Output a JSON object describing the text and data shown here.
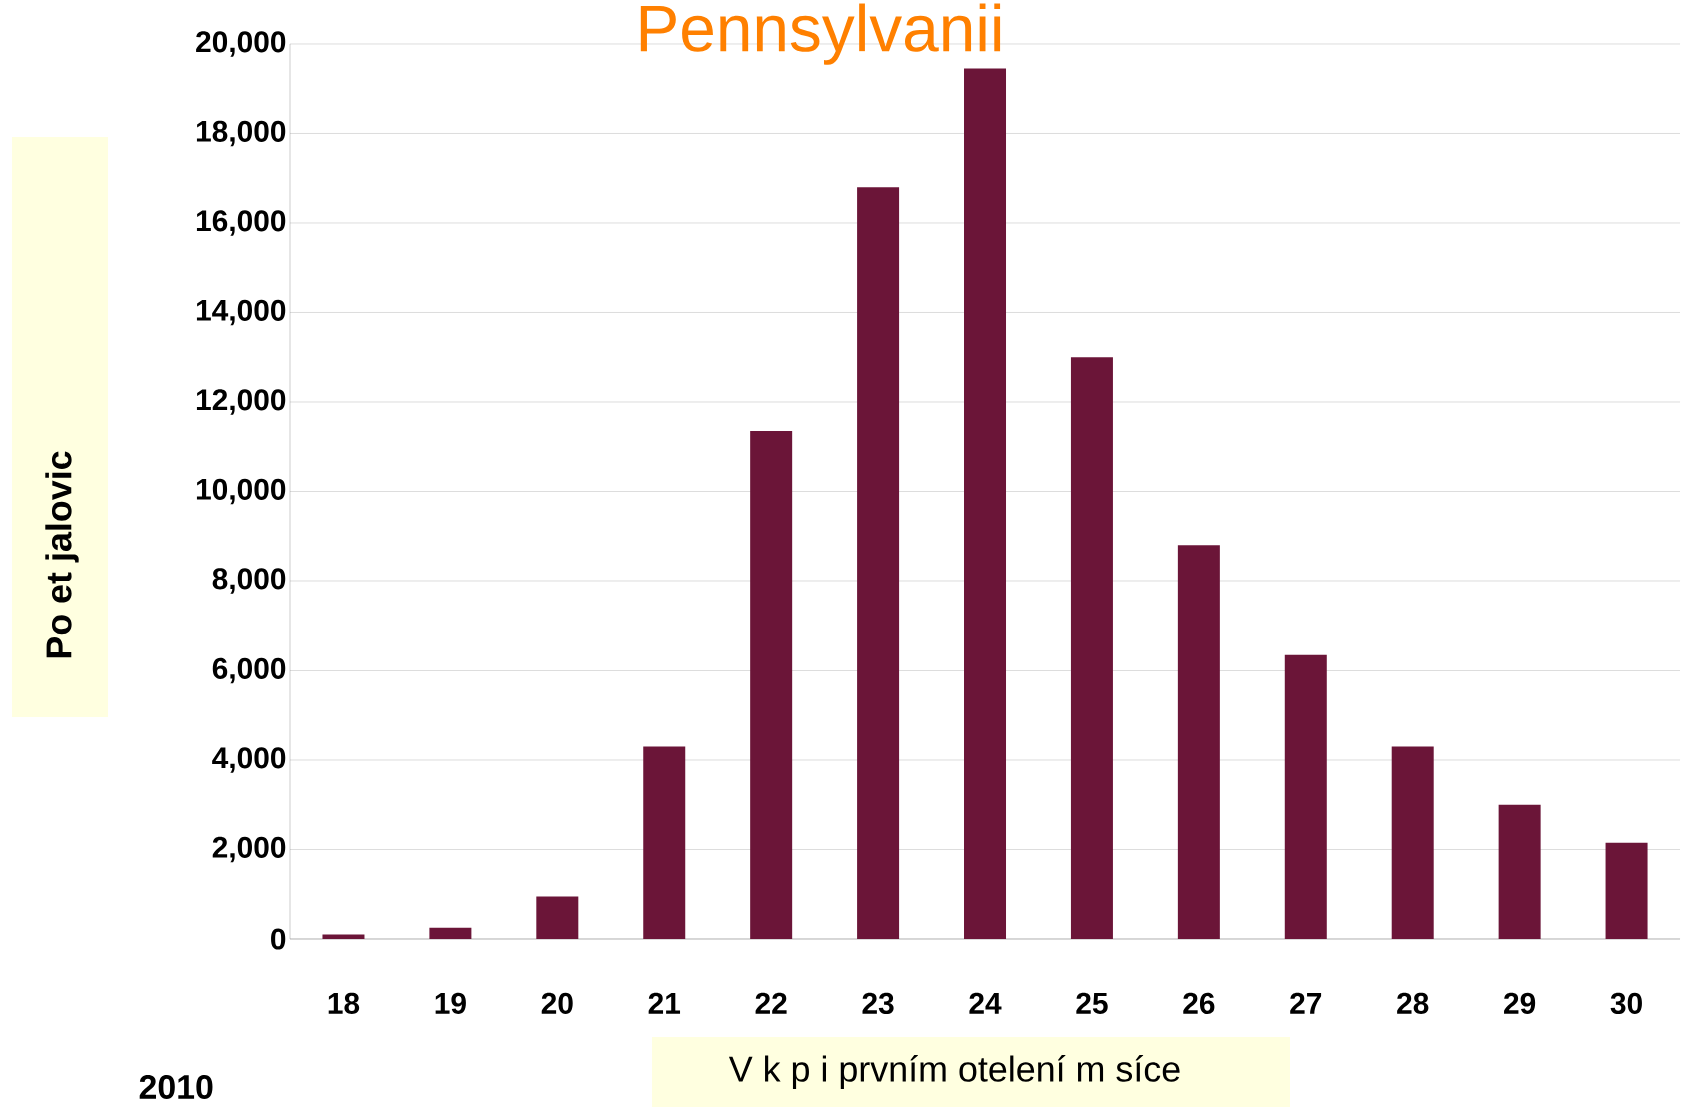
{
  "chart_data": {
    "type": "bar",
    "title": "Pennsylvanii",
    "xlabel": "V  k p i prvním otelení m  síce",
    "ylabel": "Po  et jalovic",
    "categories": [
      "18",
      "19",
      "20",
      "21",
      "22",
      "23",
      "24",
      "25",
      "26",
      "27",
      "28",
      "29",
      "30"
    ],
    "values": [
      100,
      250,
      950,
      4300,
      11350,
      16800,
      19450,
      13000,
      8800,
      6350,
      4300,
      3000,
      2150
    ],
    "color": "#6b1538",
    "ylim": [
      0,
      20000
    ],
    "yticks": [
      {
        "value": 0,
        "label": "0"
      },
      {
        "value": 2000,
        "label": "2,000"
      },
      {
        "value": 4000,
        "label": "4,000"
      },
      {
        "value": 6000,
        "label": "6,000"
      },
      {
        "value": 8000,
        "label": "8,000"
      },
      {
        "value": 10000,
        "label": "10,000"
      },
      {
        "value": 12000,
        "label": "12,000"
      },
      {
        "value": 14000,
        "label": "14,000"
      },
      {
        "value": 16000,
        "label": "16,000"
      },
      {
        "value": 18000,
        "label": "18,000"
      },
      {
        "value": 20000,
        "label": "20,000"
      }
    ],
    "grid": "y",
    "annotations": [
      "2010"
    ]
  }
}
